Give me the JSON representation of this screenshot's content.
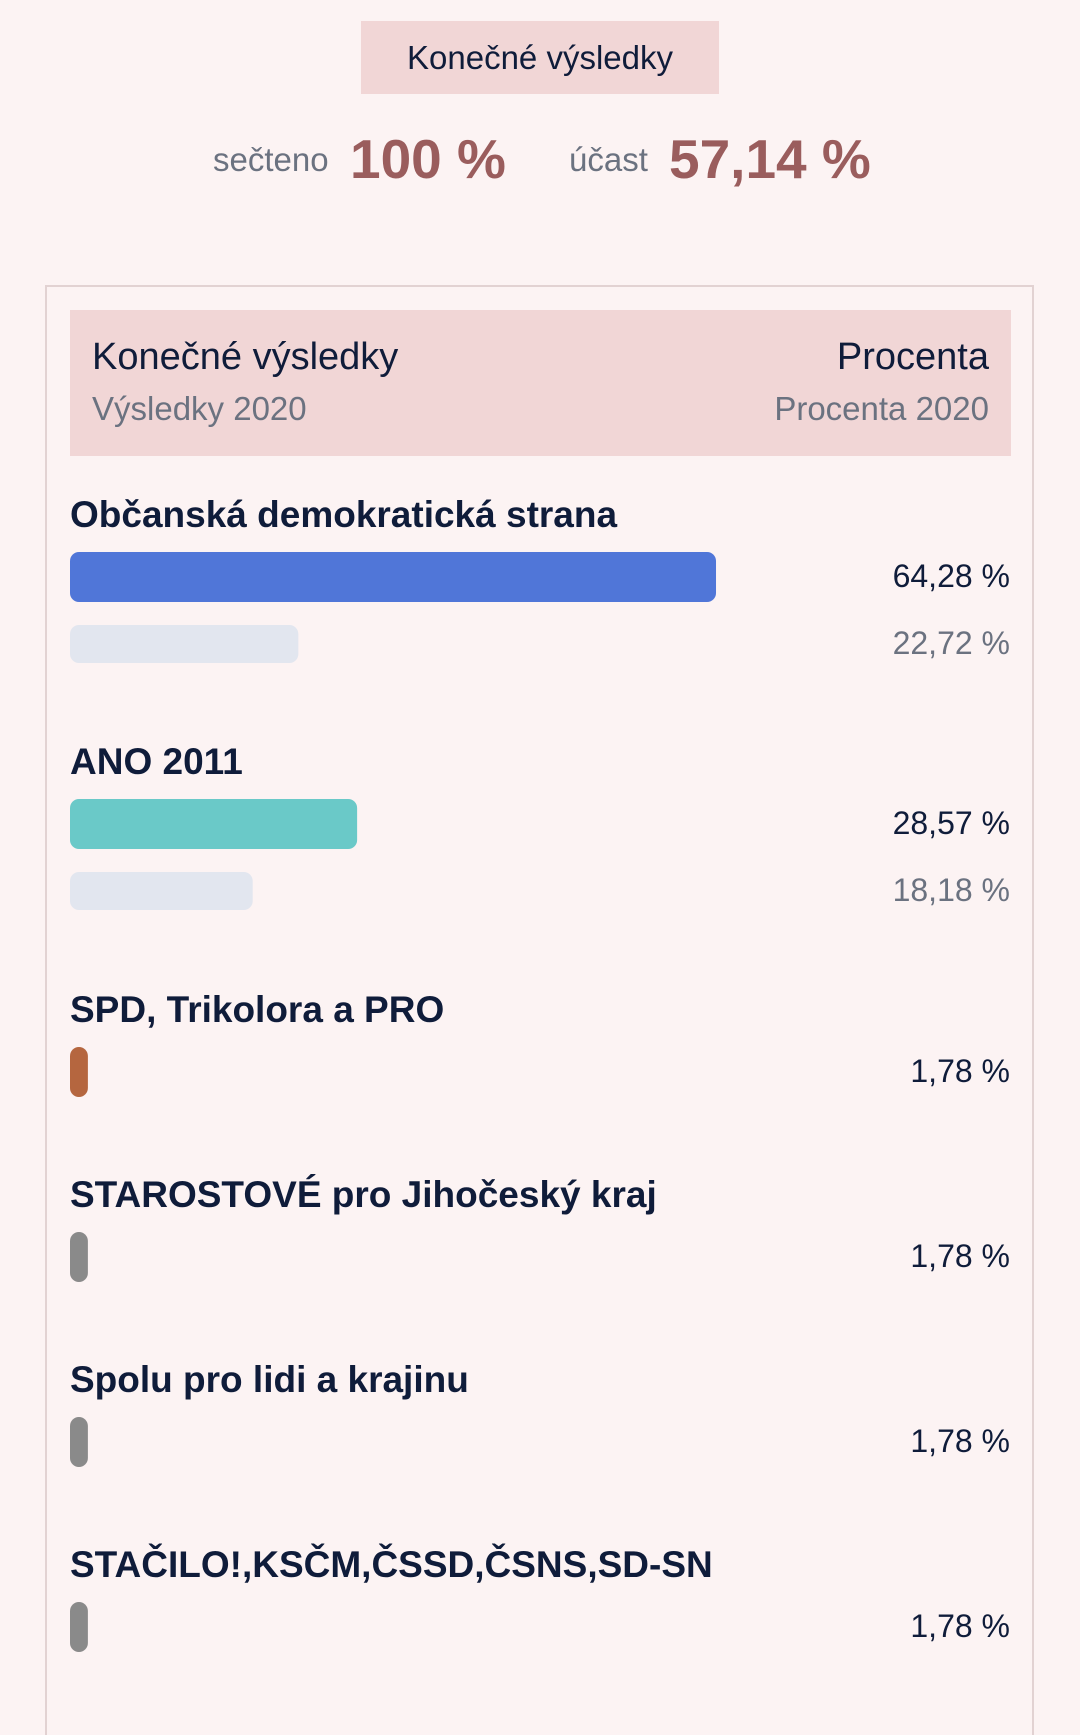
{
  "top_tab": {
    "label": "Konečné výsledky"
  },
  "stats": {
    "counted_label": "sečteno",
    "counted_value": "100 %",
    "turnout_label": "účast",
    "turnout_value": "57,14 %"
  },
  "table_header": {
    "left_title": "Konečné výsledky",
    "left_subtitle": "Výsledky 2020",
    "right_title": "Procenta",
    "right_subtitle": "Procenta 2020"
  },
  "chart_data": {
    "type": "bar",
    "orientation": "horizontal",
    "categories": [
      "Občanská demokratická strana",
      "ANO 2011",
      "SPD, Trikolora a PRO",
      "STAROSTOVÉ pro Jihočeský kraj",
      "Spolu pro lidi a krajinu",
      "STAČILO!,KSČM,ČSSD,ČSNS,SD-SN"
    ],
    "series": [
      {
        "values": [
          64.28,
          28.57,
          1.78,
          1.78,
          1.78,
          1.78
        ],
        "labels": [
          "64,28 %",
          "28,57 %",
          "1,78 %",
          "1,78 %",
          "1,78 %",
          "1,78 %"
        ]
      },
      {
        "values": [
          22.72,
          18.18,
          null,
          null,
          null,
          null
        ],
        "labels": [
          "22,72 %",
          "18,18 %",
          null,
          null,
          null,
          null
        ]
      }
    ],
    "colors": [
      "#5076d8",
      "#6ac9c8",
      "#b5663f",
      "#8a8a8a",
      "#8a8a8a",
      "#8a8a8a"
    ],
    "previous_color": "#e2e6ef",
    "xlim": [
      0,
      100
    ]
  }
}
